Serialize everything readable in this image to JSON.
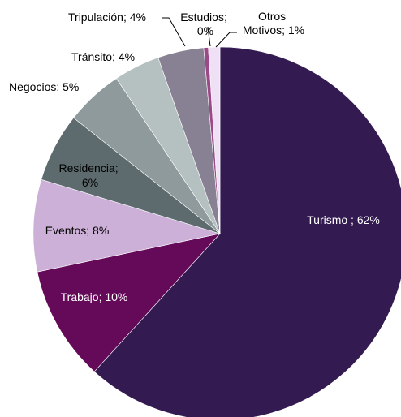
{
  "chart_data": {
    "type": "pie",
    "title": "",
    "start": "top, clockwise",
    "slices": [
      {
        "label": "Turismo",
        "text": "Turismo ; 62%",
        "value": 62,
        "color": "#331b52"
      },
      {
        "label": "Trabajo",
        "text": "Trabajo; 10%",
        "value": 10,
        "color": "#650a58"
      },
      {
        "label": "Eventos",
        "text": "Eventos; 8%",
        "value": 8,
        "color": "#cdb0d7"
      },
      {
        "label": "Residencia",
        "text": "Residencia; 6%",
        "value": 6,
        "color": "#5d6b6e"
      },
      {
        "label": "Negocios",
        "text": "Negocios; 5%",
        "value": 5,
        "color": "#8e9a9c"
      },
      {
        "label": "Tránsito",
        "text": "Tránsito; 4%",
        "value": 4,
        "color": "#b5c0c0"
      },
      {
        "label": "Tripulación",
        "text": "Tripulación; 4%",
        "value": 4,
        "color": "#878193"
      },
      {
        "label": "Estudios",
        "text": "Estudios; 0%",
        "value": 0.4,
        "color": "#9b4a87"
      },
      {
        "label": "Otros Motivos",
        "text": "Otros Motivos; 1%",
        "value": 1,
        "color": "#f0e0f5"
      }
    ]
  }
}
